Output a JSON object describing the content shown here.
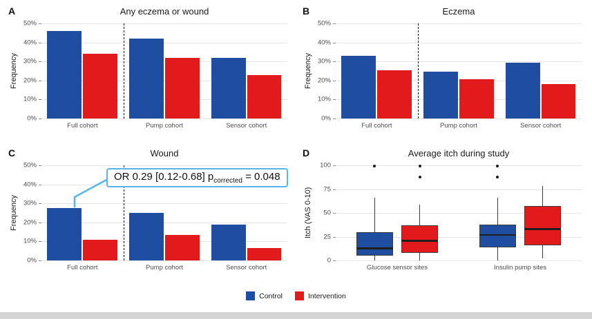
{
  "legend": {
    "items": [
      {
        "label": "Control",
        "color": "#1f4ea0"
      },
      {
        "label": "Intervention",
        "color": "#e31a1c"
      }
    ]
  },
  "chart_data": [
    {
      "panel_label": "A",
      "type": "bar",
      "title": "Any eczema or wound",
      "ylabel": "Frequency",
      "ylim": [
        0,
        50
      ],
      "yticks": [
        {
          "value": 0,
          "label": "0%"
        },
        {
          "value": 10,
          "label": "10%"
        },
        {
          "value": 20,
          "label": "20%"
        },
        {
          "value": 30,
          "label": "30%"
        },
        {
          "value": 40,
          "label": "40%"
        },
        {
          "value": 50,
          "label": "50%"
        }
      ],
      "categories": [
        "Full cohort",
        "Pump cohort",
        "Sensor cohort"
      ],
      "separator_after_index": 1,
      "series": [
        {
          "name": "Control",
          "color": "#1f4ea0",
          "values": [
            46,
            42,
            32
          ]
        },
        {
          "name": "Intervention",
          "color": "#e31a1c",
          "values": [
            34,
            32,
            23
          ]
        }
      ]
    },
    {
      "panel_label": "B",
      "type": "bar",
      "title": "Eczema",
      "ylabel": "Frequency",
      "ylim": [
        0,
        50
      ],
      "yticks": [
        {
          "value": 0,
          "label": "0%"
        },
        {
          "value": 10,
          "label": "10%"
        },
        {
          "value": 20,
          "label": "20%"
        },
        {
          "value": 30,
          "label": "30%"
        },
        {
          "value": 40,
          "label": "40%"
        },
        {
          "value": 50,
          "label": "50%"
        }
      ],
      "categories": [
        "Full cohort",
        "Pump cohort",
        "Sensor cohort"
      ],
      "separator_after_index": 1,
      "series": [
        {
          "name": "Control",
          "color": "#1f4ea0",
          "values": [
            33,
            24.5,
            29.5
          ]
        },
        {
          "name": "Intervention",
          "color": "#e31a1c",
          "values": [
            25.5,
            20.5,
            18
          ]
        }
      ]
    },
    {
      "panel_label": "C",
      "type": "bar",
      "title": "Wound",
      "ylabel": "Frequency",
      "ylim": [
        0,
        50
      ],
      "yticks": [
        {
          "value": 0,
          "label": "0%"
        },
        {
          "value": 10,
          "label": "10%"
        },
        {
          "value": 20,
          "label": "20%"
        },
        {
          "value": 30,
          "label": "30%"
        },
        {
          "value": 40,
          "label": "40%"
        },
        {
          "value": 50,
          "label": "50%"
        }
      ],
      "categories": [
        "Full cohort",
        "Pump cohort",
        "Sensor cohort"
      ],
      "separator_after_index": 1,
      "series": [
        {
          "name": "Control",
          "color": "#1f4ea0",
          "values": [
            27.5,
            25,
            19
          ]
        },
        {
          "name": "Intervention",
          "color": "#e31a1c",
          "values": [
            11,
            13.5,
            6.5
          ]
        }
      ],
      "annotation": {
        "text_prefix": "OR 0.29 [0.12-0.68] p",
        "subscript": "corrected",
        "text_suffix": " = 0.048",
        "border_color": "#56b4e9"
      }
    },
    {
      "panel_label": "D",
      "type": "boxplot",
      "title": "Average itch during study",
      "ylabel": "Itch (VAS 0-10)",
      "ylim": [
        0,
        100
      ],
      "yticks": [
        {
          "value": 0,
          "label": "0"
        },
        {
          "value": 25,
          "label": "25"
        },
        {
          "value": 50,
          "label": "50"
        },
        {
          "value": 75,
          "label": "75"
        },
        {
          "value": 100,
          "label": "100"
        }
      ],
      "categories": [
        "Glucose sensor sites",
        "Insulin pump sites"
      ],
      "series": [
        {
          "name": "Control",
          "color": "#1f4ea0",
          "boxes": [
            {
              "low": 0,
              "q1": 5,
              "median": 13,
              "q3": 30,
              "high": 66,
              "outliers": [
                99
              ]
            },
            {
              "low": 0,
              "q1": 14,
              "median": 27,
              "q3": 38,
              "high": 66,
              "outliers": [
                99,
                88
              ]
            }
          ]
        },
        {
          "name": "Intervention",
          "color": "#e31a1c",
          "boxes": [
            {
              "low": 0,
              "q1": 8,
              "median": 21,
              "q3": 37,
              "high": 59,
              "outliers": [
                99,
                88
              ]
            },
            {
              "low": 2,
              "q1": 16,
              "median": 33,
              "q3": 57,
              "high": 78,
              "outliers": []
            }
          ]
        }
      ]
    }
  ]
}
